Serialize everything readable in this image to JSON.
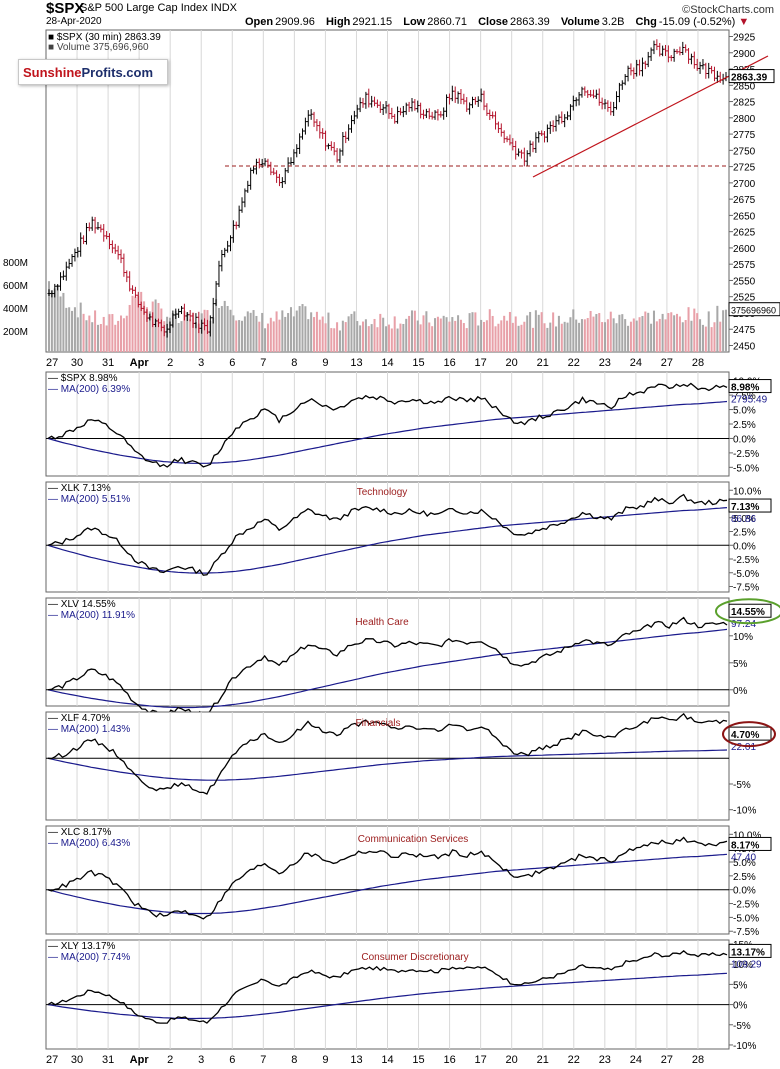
{
  "header": {
    "symbol": "$SPX",
    "name": "S&P 500 Large Cap Index",
    "exchange": "INDX",
    "date": "28-Apr-2020",
    "open_label": "Open",
    "open": "2909.96",
    "high_label": "High",
    "high": "2921.15",
    "low_label": "Low",
    "low": "2860.71",
    "close_label": "Close",
    "close": "2863.39",
    "volume_label": "Volume",
    "volume": "3.2B",
    "chg_label": "Chg",
    "chg": "-15.09 (-0.52%)",
    "credit": "StockCharts.com"
  },
  "logo": {
    "part1": "Sunshine",
    "part2": "Profits.com"
  },
  "colors": {
    "up": "#000000",
    "down": "#b3122a",
    "ma": "#1a1a8c",
    "support": "#9b1c1c",
    "trend": "#c0141c",
    "green_circle": "#5aa02c",
    "red_circle": "#8b1414",
    "vol_up": "#a8a8a8",
    "vol_down": "#e8a0a8"
  },
  "x_axis_labels": [
    "27",
    "30",
    "31",
    "Apr",
    "2",
    "3",
    "6",
    "7",
    "8",
    "9",
    "13",
    "14",
    "15",
    "16",
    "17",
    "20",
    "21",
    "22",
    "23",
    "24",
    "27",
    "28"
  ],
  "chart_data": [
    {
      "type": "line",
      "id": "spx-price",
      "title": "$SPX (30 min) 2863.39",
      "volume_label": "Volume 375,696,960",
      "ylim": [
        2440,
        2935
      ],
      "y_ticks": [
        "2925",
        "2900",
        "2875",
        "2850",
        "2825",
        "2800",
        "2775",
        "2750",
        "2725",
        "2700",
        "2675",
        "2650",
        "2625",
        "2600",
        "2575",
        "2550",
        "2525",
        "2500",
        "2475",
        "2450"
      ],
      "volume_ticks": [
        "800M",
        "600M",
        "400M",
        "200M"
      ],
      "last_label": "2863.39",
      "volume_last_label": "375696960",
      "support_level": 2726,
      "points": [
        [
          0,
          2530
        ],
        [
          1,
          2560
        ],
        [
          2,
          2600
        ],
        [
          3,
          2640
        ],
        [
          4,
          2620
        ],
        [
          5,
          2580
        ],
        [
          6,
          2520
        ],
        [
          7,
          2490
        ],
        [
          8,
          2470
        ],
        [
          9,
          2510
        ],
        [
          10,
          2490
        ],
        [
          11,
          2475
        ],
        [
          12,
          2590
        ],
        [
          13,
          2640
        ],
        [
          14,
          2720
        ],
        [
          15,
          2740
        ],
        [
          16,
          2700
        ],
        [
          17,
          2740
        ],
        [
          18,
          2805
        ],
        [
          19,
          2770
        ],
        [
          20,
          2740
        ],
        [
          21,
          2800
        ],
        [
          22,
          2830
        ],
        [
          23,
          2820
        ],
        [
          24,
          2800
        ],
        [
          25,
          2820
        ],
        [
          26,
          2810
        ],
        [
          27,
          2800
        ],
        [
          28,
          2840
        ],
        [
          29,
          2820
        ],
        [
          30,
          2830
        ],
        [
          31,
          2790
        ],
        [
          32,
          2760
        ],
        [
          33,
          2740
        ],
        [
          34,
          2770
        ],
        [
          35,
          2790
        ],
        [
          36,
          2810
        ],
        [
          37,
          2850
        ],
        [
          38,
          2830
        ],
        [
          39,
          2810
        ],
        [
          40,
          2870
        ],
        [
          41,
          2880
        ],
        [
          42,
          2905
        ],
        [
          43,
          2895
        ],
        [
          44,
          2910
        ],
        [
          45,
          2880
        ],
        [
          46,
          2870
        ],
        [
          47,
          2863
        ]
      ],
      "volume": [
        620,
        480,
        380,
        300,
        260,
        300,
        520,
        420,
        350,
        280,
        300,
        320,
        480,
        360,
        310,
        280,
        300,
        330,
        360,
        280,
        260,
        300,
        280,
        300,
        280,
        300,
        290,
        280,
        300,
        270,
        310,
        300,
        330,
        300,
        290,
        280,
        300,
        320,
        310,
        300,
        300,
        310,
        320,
        300,
        330,
        310,
        300,
        376
      ]
    },
    {
      "type": "line",
      "id": "spx",
      "label": "$SPX 8.98%",
      "ma_label": "MA(200) 6.39%",
      "ylim": [
        -6.5,
        11.5
      ],
      "y_ticks": [
        "10.0%",
        "7.5%",
        "5.0%",
        "2.5%",
        "0.0%",
        "-2.5%",
        "-5.0%"
      ],
      "last_label": "8.98%",
      "ma_last_label": "2795.49"
    },
    {
      "type": "line",
      "id": "xlk",
      "label": "XLK 7.13%",
      "ma_label": "MA(200) 5.51%",
      "sector": "Technology",
      "ylim": [
        -8.5,
        11.5
      ],
      "y_ticks": [
        "10.0%",
        "7.5%",
        "5.0%",
        "2.5%",
        "0.0%",
        "-2.5%",
        "-5.0%",
        "-7.5%"
      ],
      "last_label": "7.13%",
      "ma_last_label": "86.86"
    },
    {
      "type": "line",
      "id": "xlv",
      "label": "XLV 14.55%",
      "ma_label": "MA(200) 11.91%",
      "sector": "Health Care",
      "ylim": [
        -3,
        17
      ],
      "y_ticks": [
        "15%",
        "10%",
        "5%",
        "0%"
      ],
      "last_label": "14.55%",
      "ma_last_label": "97.24"
    },
    {
      "type": "line",
      "id": "xlf",
      "label": "XLF 4.70%",
      "ma_label": "MA(200) 1.43%",
      "sector": "Financials",
      "ylim": [
        -12,
        9
      ],
      "y_ticks": [
        "5%",
        "-5%",
        "-10%"
      ],
      "last_label": "4.70%",
      "ma_last_label": "22.01"
    },
    {
      "type": "line",
      "id": "xlc",
      "label": "XLC 8.17%",
      "ma_label": "MA(200) 6.43%",
      "sector": "Communication Services",
      "ylim": [
        -8,
        11.5
      ],
      "y_ticks": [
        "10.0%",
        "7.5%",
        "5.0%",
        "2.5%",
        "0.0%",
        "-2.5%",
        "-5.0%",
        "-7.5%"
      ],
      "last_label": "8.17%",
      "ma_last_label": "47.40"
    },
    {
      "type": "line",
      "id": "xly",
      "label": "XLY 13.17%",
      "ma_label": "MA(200) 7.74%",
      "sector": "Consumer Discretionary",
      "ylim": [
        -11,
        16
      ],
      "y_ticks": [
        "15%",
        "10%",
        "5%",
        "0%",
        "-5%",
        "-10%"
      ],
      "last_label": "13.17%",
      "ma_last_label": "109.29"
    }
  ]
}
